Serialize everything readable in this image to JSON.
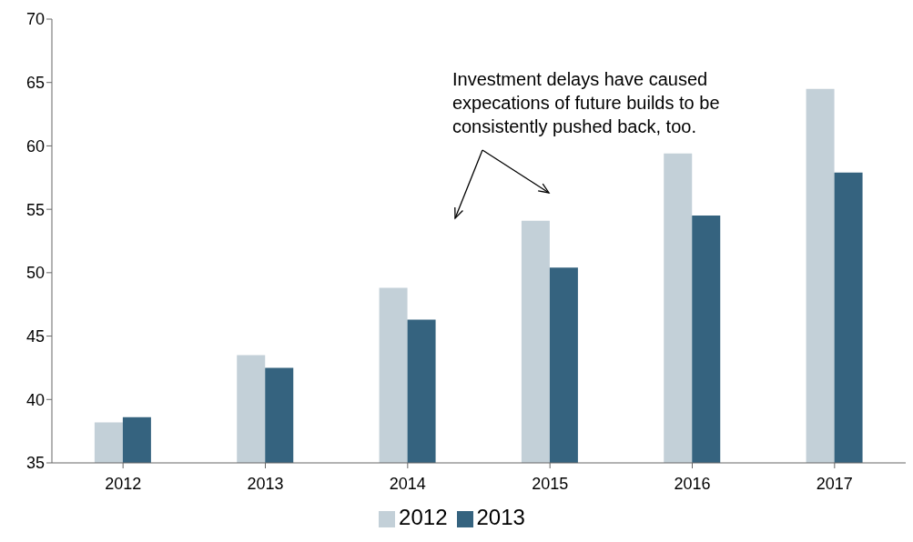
{
  "chart_data": {
    "type": "bar",
    "categories": [
      "2012",
      "2013",
      "2014",
      "2015",
      "2016",
      "2017"
    ],
    "series": [
      {
        "name": "2012",
        "color": "#c3d0d8",
        "values": [
          38.2,
          43.5,
          48.8,
          54.1,
          59.4,
          64.5
        ]
      },
      {
        "name": "2013",
        "color": "#35637f",
        "values": [
          38.6,
          42.5,
          46.3,
          50.4,
          54.5,
          57.9
        ]
      }
    ],
    "ylim": [
      35,
      70
    ],
    "yticks": [
      35,
      40,
      45,
      50,
      55,
      60,
      65,
      70
    ],
    "grid": false,
    "legend": "bottom",
    "annotations": [
      "Investment delays have caused expecations of future builds to be consistently pushed back, too."
    ]
  }
}
